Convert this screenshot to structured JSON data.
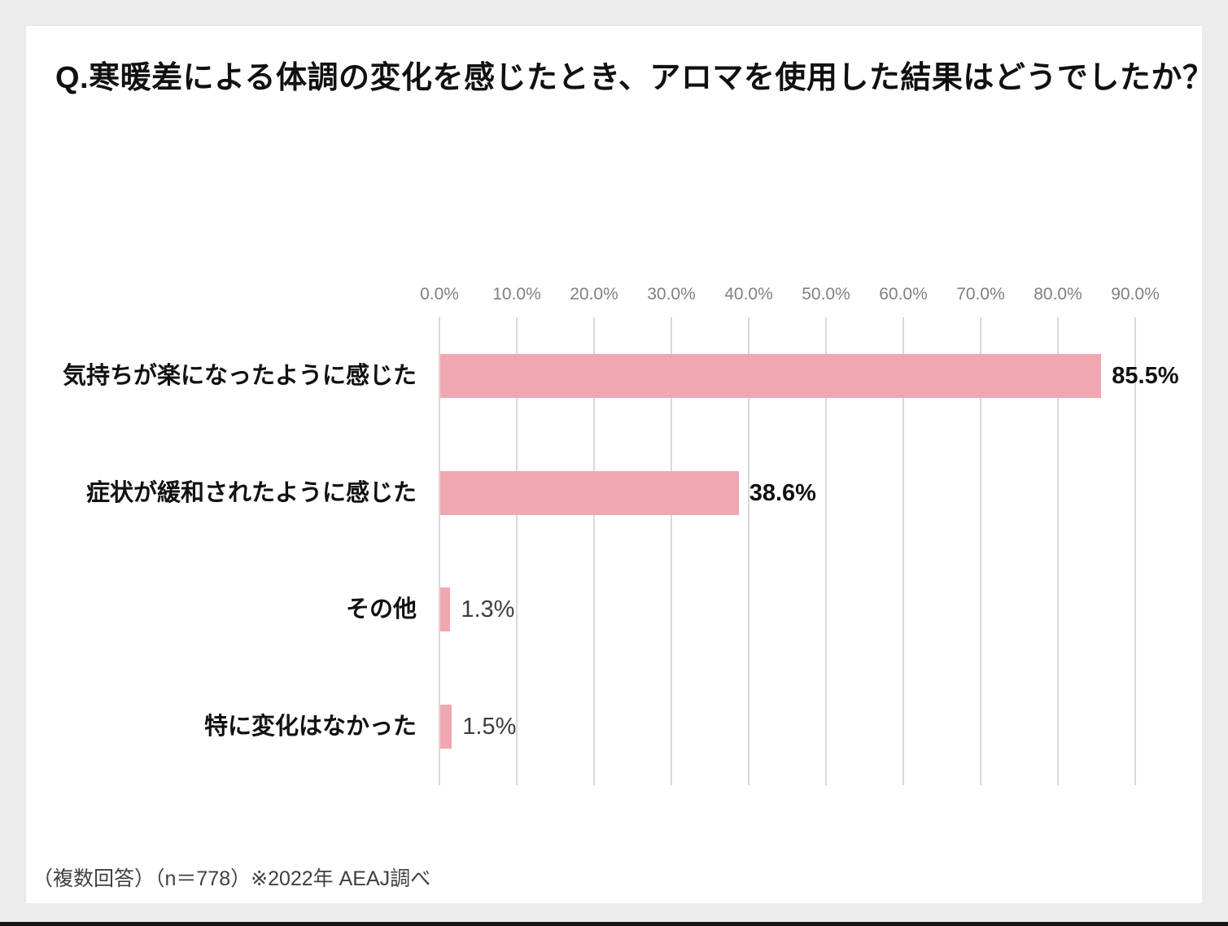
{
  "title": "Q.寒暖差による体調の変化を感じたとき、アロマを使用した結果はどうでしたか？",
  "footnote": "（複数回答）（n＝778）※2022年 AEAJ調べ",
  "colors": {
    "page_background": "#ebebeb",
    "panel_background": "#ffffff",
    "bottom_strip": "#161616"
  },
  "chart_data": {
    "type": "bar",
    "orientation": "horizontal",
    "title": "Q.寒暖差による体調の変化を感じたとき、アロマを使用した結果はどうでしたか？",
    "categories": [
      "気持ちが楽になったように感じた",
      "症状が緩和されたように感じた",
      "その他",
      "特に変化はなかった"
    ],
    "values": [
      85.5,
      38.6,
      1.3,
      1.5
    ],
    "value_labels": [
      "85.5%",
      "38.6%",
      "1.3%",
      "1.5%"
    ],
    "value_label_bold": [
      true,
      true,
      false,
      false
    ],
    "x_axis": {
      "position": "top",
      "min": 0,
      "max": 97,
      "tick_values": [
        0,
        10,
        20,
        30,
        40,
        50,
        60,
        70,
        80,
        90
      ],
      "tick_labels": [
        "0.0%",
        "10.0%",
        "20.0%",
        "30.0%",
        "40.0%",
        "50.0%",
        "60.0%",
        "70.0%",
        "80.0%",
        "90.0%"
      ]
    },
    "grid": true,
    "gridline_color": "#d9d9d9",
    "bar_color": "#f0a7b2",
    "legend": false
  }
}
